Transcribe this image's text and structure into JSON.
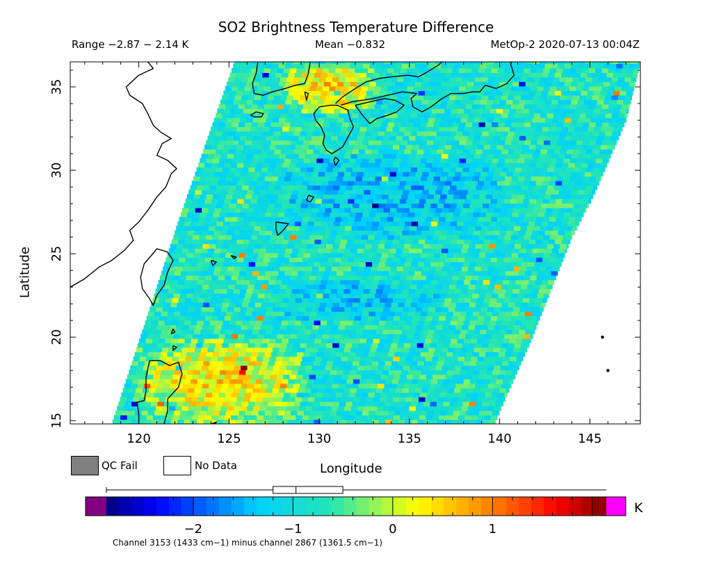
{
  "header": {
    "title": "SO2 Brightness Temperature Difference",
    "range": "Range −2.87 − 2.14 K",
    "mean": "Mean −0.832",
    "satellite_time": "MetOp-2 2020-07-13 00:04Z"
  },
  "legend": {
    "qc_fail_label": "QC Fail",
    "no_data_label": "No Data",
    "qc_fail_color": "#808080",
    "no_data_color": "#ffffff"
  },
  "colorbar": {
    "units": "K",
    "min": -2.87,
    "max": 2.14,
    "mean": -0.832,
    "tick_values": [
      -2,
      -1,
      0,
      1
    ],
    "tick_labels": [
      "−2",
      "−1",
      "0",
      "1"
    ],
    "underflow_color": "#800080",
    "overflow_color": "#ff00ff",
    "box_whisker": {
      "q1": -1.2,
      "median": -0.97,
      "q3": -0.5
    },
    "footnote": "Channel 3153 (1433 cm−1) minus channel 2867 (1361.5 cm−1)"
  },
  "chart_data": {
    "type": "heatmap",
    "title": "SO2 Brightness Temperature Difference",
    "xlabel": "Longitude",
    "ylabel": "Latitude",
    "xlim": [
      116.2,
      147.8
    ],
    "ylim": [
      14.8,
      36.5
    ],
    "xticks": [
      120,
      125,
      130,
      135,
      140,
      145
    ],
    "yticks": [
      15,
      20,
      25,
      30,
      35
    ],
    "xtick_labels": [
      "120",
      "125",
      "130",
      "135",
      "140",
      "145"
    ],
    "ytick_labels": [
      "15",
      "20",
      "25",
      "30",
      "35"
    ],
    "value_range": [
      -2.87,
      2.14
    ],
    "mean": -0.832,
    "units": "K",
    "swath_edges": {
      "west": [
        [
          118.5,
          14.8
        ],
        [
          122.3,
          27.3
        ],
        [
          125.3,
          36.5
        ]
      ],
      "east": [
        [
          139.7,
          14.8
        ],
        [
          141.8,
          20.0
        ],
        [
          144.0,
          26.0
        ],
        [
          145.2,
          28.5
        ],
        [
          147.0,
          33.0
        ],
        [
          147.8,
          36.5
        ]
      ]
    },
    "value_pattern": [
      {
        "lat_range": [
          33.5,
          36.5
        ],
        "lon_range": [
          128,
          133
        ],
        "typical_value": 0.5
      },
      {
        "lat_range": [
          26,
          31
        ],
        "lon_range": [
          128,
          140
        ],
        "typical_value": -1.4
      },
      {
        "lat_range": [
          21,
          23.5
        ],
        "lon_range": [
          127,
          137
        ],
        "typical_value": -1.3
      },
      {
        "lat_range": [
          14.8,
          20
        ],
        "lon_range": [
          120,
          129
        ],
        "typical_value": 0.4
      },
      {
        "lat_range": [
          14.8,
          36.5
        ],
        "lon_range": [
          118.5,
          147.8
        ],
        "typical_value": -0.8
      }
    ],
    "coastlines": {
      "china": [
        [
          116.2,
          23.0
        ],
        [
          117.0,
          23.5
        ],
        [
          117.8,
          24.2
        ],
        [
          118.5,
          24.6
        ],
        [
          119.2,
          25.2
        ],
        [
          119.7,
          25.8
        ],
        [
          119.5,
          26.4
        ],
        [
          120.0,
          26.9
        ],
        [
          120.5,
          27.6
        ],
        [
          121.0,
          28.4
        ],
        [
          121.5,
          29.0
        ],
        [
          121.8,
          29.8
        ],
        [
          122.1,
          30.1
        ],
        [
          121.6,
          30.6
        ],
        [
          121.0,
          30.9
        ],
        [
          121.3,
          31.6
        ],
        [
          121.8,
          31.9
        ],
        [
          121.2,
          32.3
        ],
        [
          120.8,
          32.7
        ],
        [
          120.5,
          33.4
        ],
        [
          120.2,
          34.0
        ],
        [
          119.5,
          34.5
        ],
        [
          119.3,
          35.0
        ],
        [
          120.0,
          35.7
        ],
        [
          120.8,
          36.1
        ],
        [
          120.5,
          36.5
        ]
      ],
      "taiwan": [
        [
          121.0,
          25.3
        ],
        [
          121.6,
          25.1
        ],
        [
          121.9,
          24.6
        ],
        [
          121.6,
          23.9
        ],
        [
          121.4,
          23.1
        ],
        [
          121.0,
          22.5
        ],
        [
          120.8,
          21.9
        ],
        [
          120.6,
          22.3
        ],
        [
          120.2,
          22.9
        ],
        [
          120.1,
          23.6
        ],
        [
          120.3,
          24.4
        ],
        [
          120.7,
          24.9
        ],
        [
          121.0,
          25.3
        ]
      ],
      "kyushu": [
        [
          130.0,
          33.8
        ],
        [
          130.6,
          33.9
        ],
        [
          131.0,
          33.9
        ],
        [
          131.6,
          33.6
        ],
        [
          131.7,
          33.1
        ],
        [
          131.9,
          32.6
        ],
        [
          131.6,
          32.0
        ],
        [
          131.3,
          31.4
        ],
        [
          130.7,
          31.0
        ],
        [
          130.4,
          31.2
        ],
        [
          130.2,
          31.6
        ],
        [
          130.3,
          32.1
        ],
        [
          130.1,
          32.6
        ],
        [
          129.8,
          33.0
        ],
        [
          129.7,
          33.4
        ],
        [
          130.0,
          33.8
        ]
      ],
      "shikoku": [
        [
          132.0,
          33.9
        ],
        [
          132.8,
          34.1
        ],
        [
          133.6,
          34.3
        ],
        [
          134.2,
          34.2
        ],
        [
          134.7,
          33.9
        ],
        [
          134.3,
          33.5
        ],
        [
          133.8,
          33.3
        ],
        [
          133.2,
          33.1
        ],
        [
          132.8,
          32.8
        ],
        [
          132.4,
          33.3
        ],
        [
          132.0,
          33.9
        ]
      ],
      "honshu": [
        [
          130.9,
          34.0
        ],
        [
          131.3,
          34.4
        ],
        [
          132.0,
          34.9
        ],
        [
          132.6,
          35.3
        ],
        [
          133.3,
          35.5
        ],
        [
          134.0,
          35.6
        ],
        [
          134.9,
          35.7
        ],
        [
          135.5,
          35.6
        ],
        [
          136.0,
          35.9
        ],
        [
          136.6,
          36.3
        ],
        [
          136.8,
          36.5
        ]
      ],
      "honshu_south": [
        [
          136.8,
          34.3
        ],
        [
          136.2,
          33.8
        ],
        [
          135.7,
          33.5
        ],
        [
          135.2,
          33.8
        ],
        [
          135.1,
          34.3
        ],
        [
          135.4,
          34.6
        ],
        [
          134.6,
          34.7
        ],
        [
          133.8,
          34.5
        ],
        [
          133.0,
          34.3
        ],
        [
          132.4,
          34.2
        ],
        [
          131.8,
          34.1
        ],
        [
          131.2,
          33.9
        ]
      ],
      "honshu_east": [
        [
          136.8,
          34.3
        ],
        [
          137.3,
          34.6
        ],
        [
          138.0,
          34.6
        ],
        [
          138.5,
          34.7
        ],
        [
          138.9,
          34.7
        ],
        [
          139.2,
          35.1
        ],
        [
          139.8,
          34.9
        ],
        [
          140.4,
          35.2
        ],
        [
          140.8,
          35.7
        ],
        [
          140.6,
          36.4
        ],
        [
          140.7,
          36.5
        ]
      ],
      "korea": [
        [
          126.6,
          36.5
        ],
        [
          126.5,
          35.8
        ],
        [
          126.3,
          35.2
        ],
        [
          126.4,
          34.6
        ],
        [
          126.9,
          34.5
        ],
        [
          127.4,
          34.7
        ],
        [
          128.1,
          34.9
        ],
        [
          128.7,
          35.1
        ],
        [
          129.2,
          35.2
        ],
        [
          129.4,
          35.8
        ],
        [
          129.5,
          36.5
        ]
      ],
      "jeju": [
        [
          126.2,
          33.3
        ],
        [
          126.5,
          33.5
        ],
        [
          126.9,
          33.4
        ],
        [
          126.8,
          33.2
        ],
        [
          126.4,
          33.2
        ],
        [
          126.2,
          33.3
        ]
      ],
      "tsushima": [
        [
          129.2,
          34.7
        ],
        [
          129.4,
          34.6
        ],
        [
          129.3,
          34.2
        ],
        [
          129.2,
          34.7
        ]
      ],
      "tanegashima": [
        [
          130.9,
          30.8
        ],
        [
          131.1,
          30.6
        ],
        [
          130.9,
          30.3
        ],
        [
          130.8,
          30.6
        ],
        [
          130.9,
          30.8
        ]
      ],
      "amami": [
        [
          129.4,
          28.5
        ],
        [
          129.7,
          28.4
        ],
        [
          129.5,
          28.1
        ],
        [
          129.3,
          28.2
        ],
        [
          129.4,
          28.5
        ]
      ],
      "okinawa": [
        [
          127.6,
          26.9
        ],
        [
          128.3,
          26.8
        ],
        [
          128.0,
          26.4
        ],
        [
          127.7,
          26.1
        ],
        [
          127.6,
          26.5
        ],
        [
          127.6,
          26.9
        ]
      ],
      "miyako": [
        [
          125.1,
          24.9
        ],
        [
          125.4,
          24.8
        ],
        [
          125.3,
          24.7
        ],
        [
          125.1,
          24.9
        ]
      ],
      "ishigaki": [
        [
          124.0,
          24.6
        ],
        [
          124.3,
          24.5
        ],
        [
          124.1,
          24.3
        ],
        [
          124.0,
          24.6
        ]
      ],
      "luzon": [
        [
          120.6,
          18.6
        ],
        [
          121.2,
          18.6
        ],
        [
          121.7,
          18.3
        ],
        [
          122.2,
          18.5
        ],
        [
          122.4,
          17.8
        ],
        [
          122.2,
          17.0
        ],
        [
          121.6,
          16.3
        ],
        [
          121.6,
          15.6
        ],
        [
          121.4,
          14.8
        ]
      ],
      "luzon_west": [
        [
          120.6,
          18.6
        ],
        [
          120.4,
          17.6
        ],
        [
          120.4,
          16.8
        ],
        [
          120.3,
          16.2
        ],
        [
          119.9,
          16.1
        ],
        [
          120.0,
          15.4
        ],
        [
          120.0,
          14.8
        ]
      ],
      "batan": [
        [
          121.9,
          20.5
        ],
        [
          122.0,
          20.3
        ],
        [
          121.8,
          20.2
        ],
        [
          121.9,
          20.5
        ]
      ],
      "babuyan": [
        [
          121.9,
          19.5
        ],
        [
          122.1,
          19.4
        ],
        [
          121.9,
          19.2
        ],
        [
          121.9,
          19.5
        ]
      ],
      "catanduanes": [
        [
          124.0,
          14.8
        ],
        [
          124.3,
          14.9
        ],
        [
          124.2,
          14.8
        ]
      ],
      "marianas": [
        [
          145.7,
          20.0
        ],
        [
          146.0,
          18.0
        ]
      ]
    }
  }
}
